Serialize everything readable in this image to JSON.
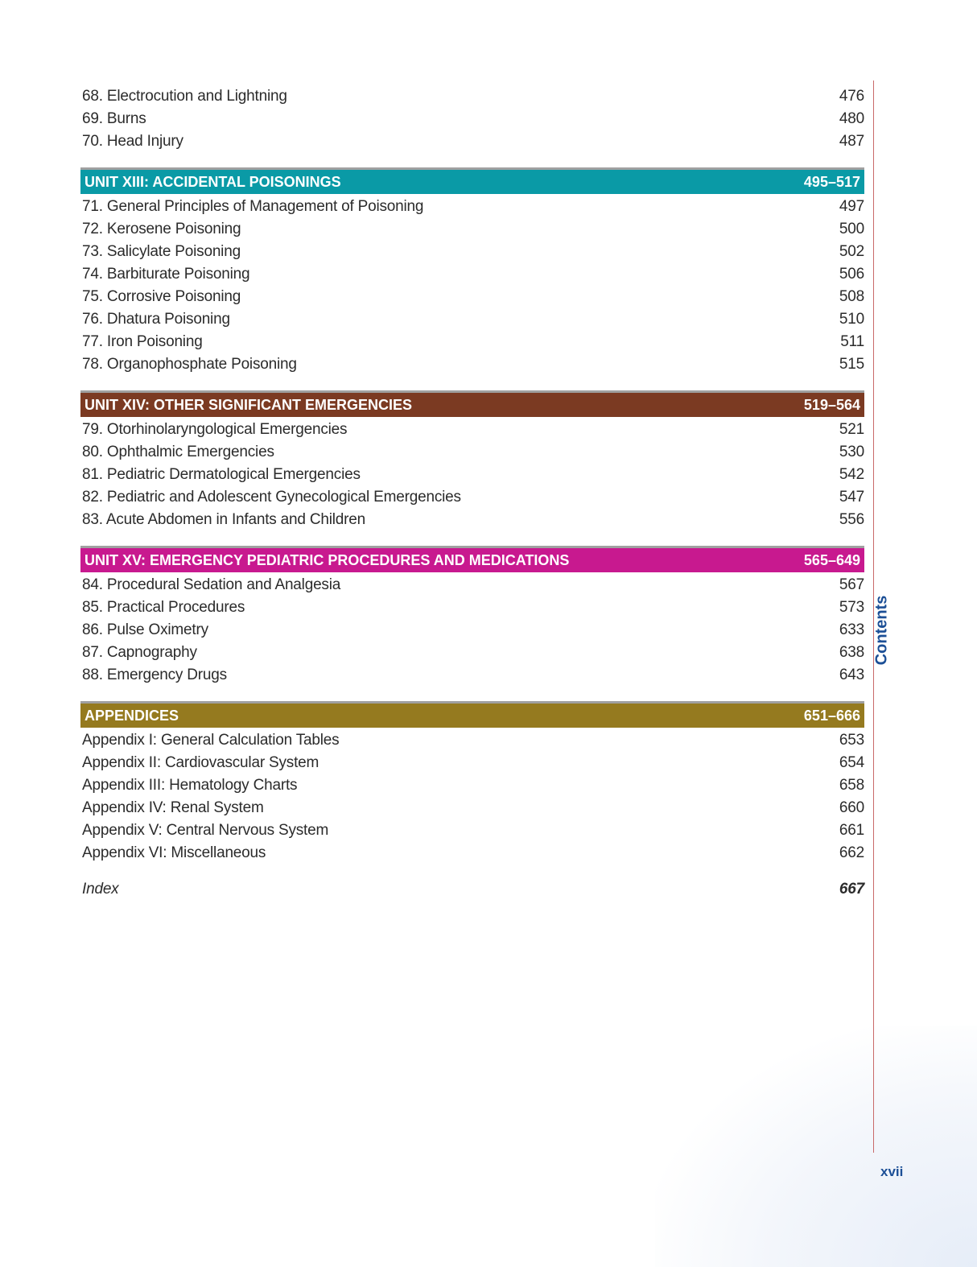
{
  "colors": {
    "unit13": "#0a9aa6",
    "unit14": "#7b3a22",
    "unit15": "#c8198f",
    "appendices": "#957a1f"
  },
  "pre_items": [
    {
      "title": "68. Electrocution and Lightning",
      "page": "476"
    },
    {
      "title": "69. Burns",
      "page": "480"
    },
    {
      "title": "70. Head Injury",
      "page": "487"
    }
  ],
  "sections": [
    {
      "heading": "UNIT XIII: ACCIDENTAL POISONINGS",
      "range": "495–517",
      "items": [
        {
          "title": "71. General Principles of Management of Poisoning",
          "page": "497"
        },
        {
          "title": "72. Kerosene Poisoning",
          "page": "500"
        },
        {
          "title": "73. Salicylate Poisoning",
          "page": "502"
        },
        {
          "title": "74. Barbiturate Poisoning",
          "page": "506"
        },
        {
          "title": "75. Corrosive Poisoning",
          "page": "508"
        },
        {
          "title": "76. Dhatura Poisoning",
          "page": "510"
        },
        {
          "title": "77. Iron Poisoning",
          "page": "511"
        },
        {
          "title": "78. Organophosphate Poisoning",
          "page": "515"
        }
      ]
    },
    {
      "heading": "UNIT XIV: OTHER SIGNIFICANT EMERGENCIES",
      "range": "519–564",
      "items": [
        {
          "title": "79. Otorhinolaryngological Emergencies",
          "page": "521"
        },
        {
          "title": "80. Ophthalmic Emergencies",
          "page": "530"
        },
        {
          "title": "81. Pediatric Dermatological Emergencies",
          "page": "542"
        },
        {
          "title": "82. Pediatric and Adolescent Gynecological Emergencies",
          "page": "547"
        },
        {
          "title": "83. Acute Abdomen in Infants and Children",
          "page": "556"
        }
      ]
    },
    {
      "heading": "UNIT XV: EMERGENCY PEDIATRIC PROCEDURES AND MEDICATIONS",
      "range": "565–649",
      "items": [
        {
          "title": "84. Procedural Sedation and Analgesia",
          "page": "567"
        },
        {
          "title": "85. Practical Procedures",
          "page": "573"
        },
        {
          "title": "86. Pulse Oximetry",
          "page": "633"
        },
        {
          "title": "87. Capnography",
          "page": "638"
        },
        {
          "title": "88. Emergency Drugs",
          "page": "643"
        }
      ]
    },
    {
      "heading": "APPENDICES",
      "range": "651–666",
      "items": [
        {
          "title": "Appendix I: General Calculation Tables",
          "page": "653"
        },
        {
          "title": "Appendix II: Cardiovascular System",
          "page": "654"
        },
        {
          "title": "Appendix III: Hematology Charts",
          "page": "658"
        },
        {
          "title": "Appendix IV: Renal System",
          "page": "660"
        },
        {
          "title": "Appendix V: Central Nervous System",
          "page": "661"
        },
        {
          "title": "Appendix VI: Miscellaneous",
          "page": "662"
        }
      ]
    }
  ],
  "index": {
    "title": "Index",
    "page": "667"
  },
  "side_label": "Contents",
  "folio": "xvii"
}
